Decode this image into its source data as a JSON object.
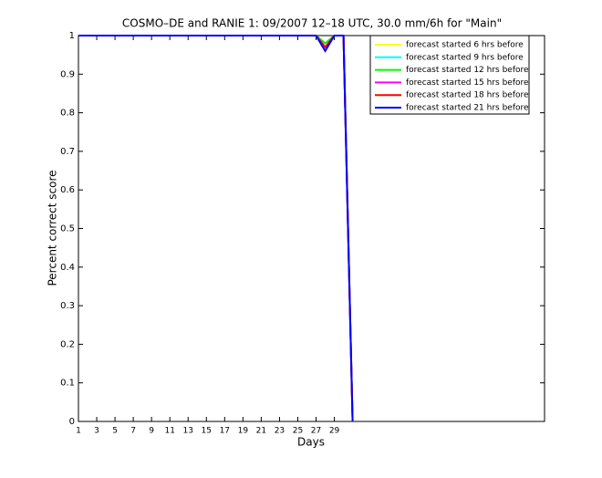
{
  "chart_data": {
    "type": "line",
    "title": "COSMO–DE and RANIE 1: 09/2007 12–18 UTC, 30.0 mm/6h for \"Main\"",
    "xlabel": "Days",
    "ylabel": "Percent correct score",
    "x": [
      1,
      2,
      3,
      4,
      5,
      6,
      7,
      8,
      9,
      10,
      11,
      12,
      13,
      14,
      15,
      16,
      17,
      18,
      19,
      20,
      21,
      22,
      23,
      24,
      25,
      26,
      27,
      28,
      29,
      30,
      31
    ],
    "series": [
      {
        "name": "forecast started 6 hrs before",
        "color": "#ffff00",
        "values": [
          1,
          1,
          1,
          1,
          1,
          1,
          1,
          1,
          1,
          1,
          1,
          1,
          1,
          1,
          1,
          1,
          1,
          1,
          1,
          1,
          1,
          1,
          1,
          1,
          1,
          1,
          1,
          0.98,
          1,
          1,
          0
        ]
      },
      {
        "name": "forecast started 9 hrs before",
        "color": "#00ffff",
        "values": [
          1,
          1,
          1,
          1,
          1,
          1,
          1,
          1,
          1,
          1,
          1,
          1,
          1,
          1,
          1,
          1,
          1,
          1,
          1,
          1,
          1,
          1,
          1,
          1,
          1,
          1,
          1,
          0.98,
          1,
          1,
          0
        ]
      },
      {
        "name": "forecast started 12 hrs before",
        "color": "#00ff00",
        "values": [
          1,
          1,
          1,
          1,
          1,
          1,
          1,
          1,
          1,
          1,
          1,
          1,
          1,
          1,
          1,
          1,
          1,
          1,
          1,
          1,
          1,
          1,
          1,
          1,
          1,
          1,
          1,
          0.98,
          1,
          1,
          0
        ]
      },
      {
        "name": "forecast started 15 hrs before",
        "color": "#ff00ff",
        "values": [
          1,
          1,
          1,
          1,
          1,
          1,
          1,
          1,
          1,
          1,
          1,
          1,
          1,
          1,
          1,
          1,
          1,
          1,
          1,
          1,
          1,
          1,
          1,
          1,
          1,
          1,
          1,
          0.97,
          1,
          1,
          0
        ]
      },
      {
        "name": "forecast started 18 hrs before",
        "color": "#ff0000",
        "values": [
          1,
          1,
          1,
          1,
          1,
          1,
          1,
          1,
          1,
          1,
          1,
          1,
          1,
          1,
          1,
          1,
          1,
          1,
          1,
          1,
          1,
          1,
          1,
          1,
          1,
          1,
          1,
          0.97,
          1,
          1,
          0
        ]
      },
      {
        "name": "forecast started 21 hrs before",
        "color": "#0000ff",
        "values": [
          1,
          1,
          1,
          1,
          1,
          1,
          1,
          1,
          1,
          1,
          1,
          1,
          1,
          1,
          1,
          1,
          1,
          1,
          1,
          1,
          1,
          1,
          1,
          1,
          1,
          1,
          1,
          0.96,
          1,
          1,
          0
        ]
      }
    ],
    "xlim": [
      1,
      52
    ],
    "xticks": [
      1,
      3,
      5,
      7,
      9,
      11,
      13,
      15,
      17,
      19,
      21,
      23,
      25,
      27,
      29
    ],
    "ylim": [
      0,
      1
    ],
    "yticks": [
      0,
      0.1,
      0.2,
      0.3,
      0.4,
      0.5,
      0.6,
      0.7,
      0.8,
      0.9,
      1
    ],
    "grid": false,
    "legend": "northeast"
  }
}
